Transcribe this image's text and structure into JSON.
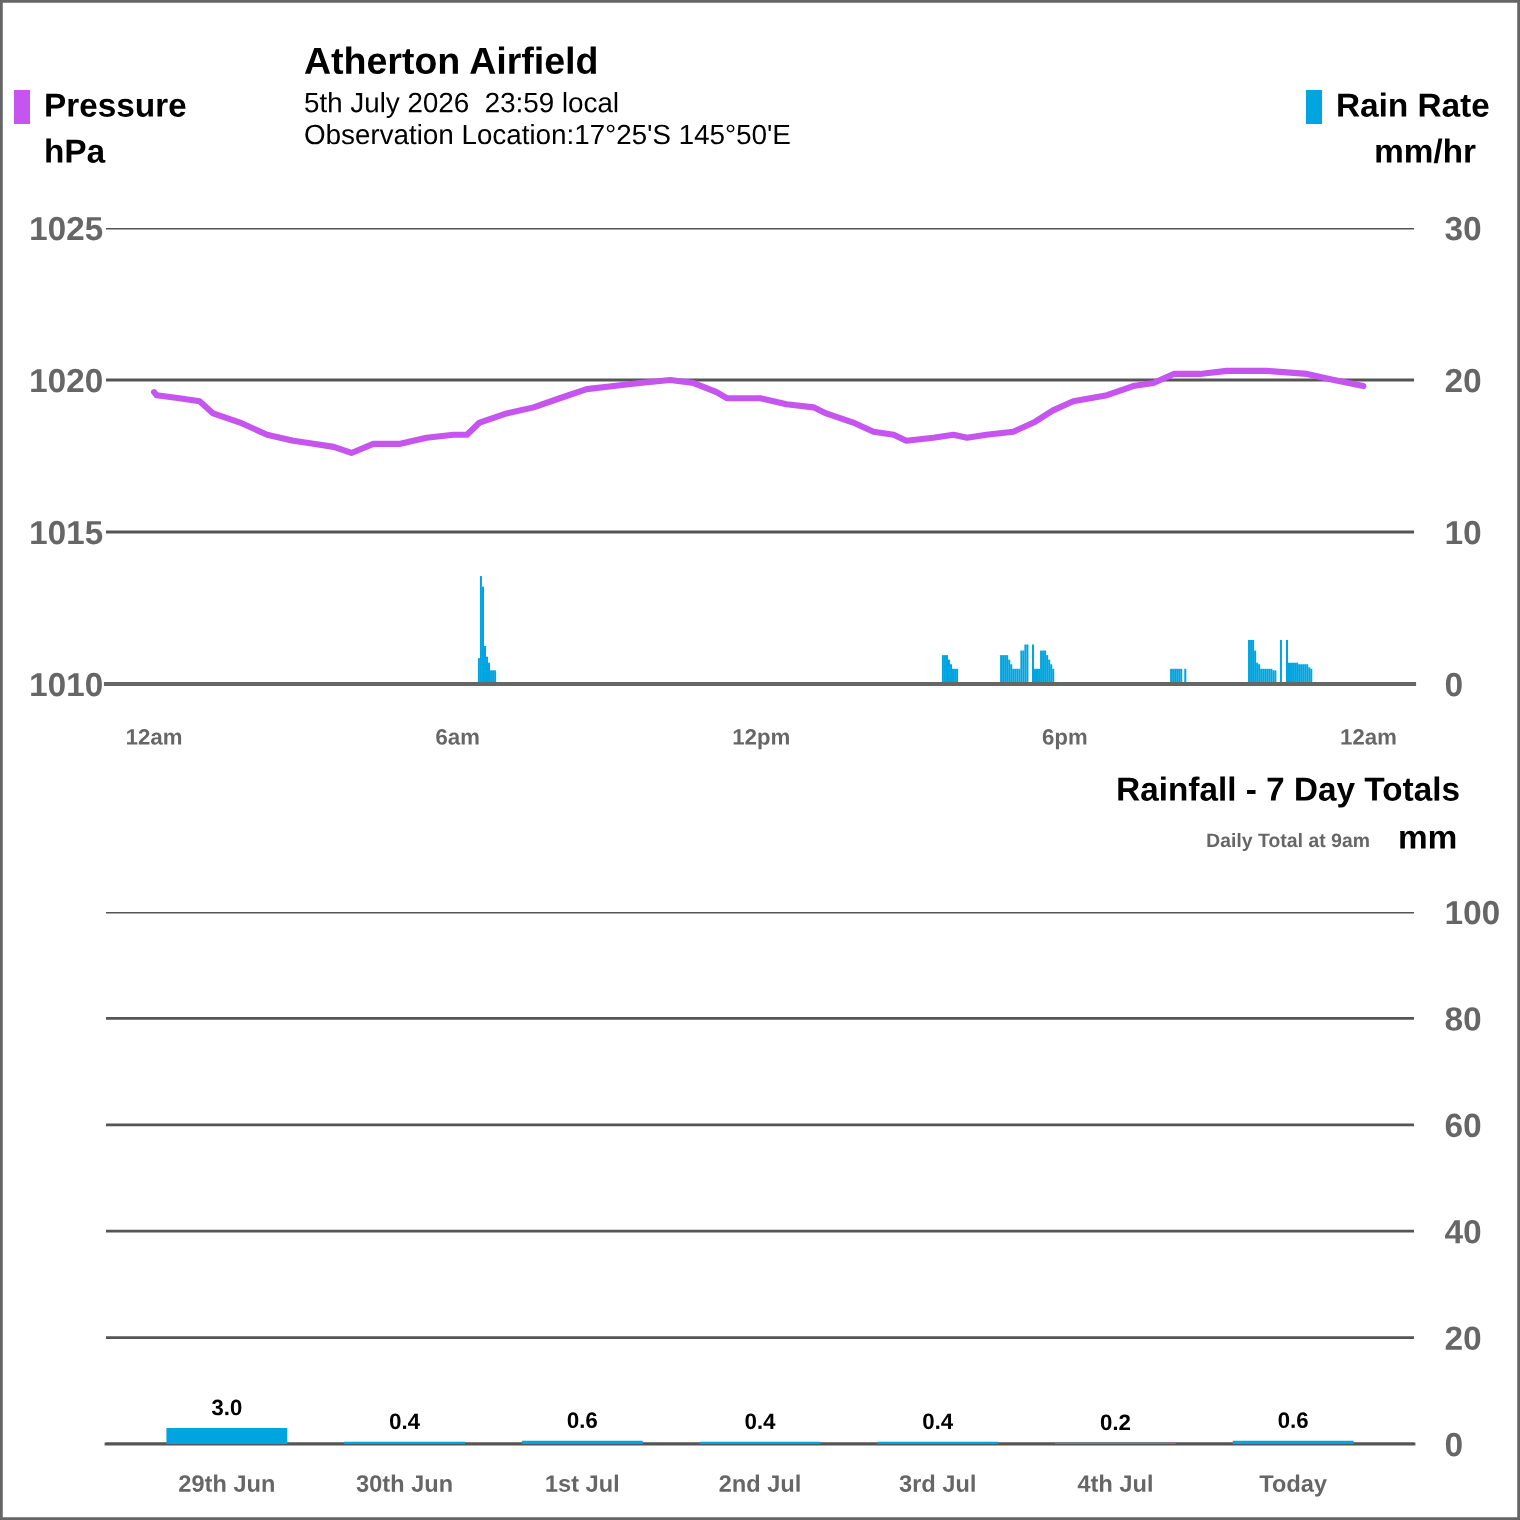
{
  "chart_data": [
    {
      "type": "line",
      "title": "Atherton Airfield",
      "subtitle": "5th July 2026  23:59 local\nObservation Location:17°25'S 145°50'E",
      "ylabel": "hPa",
      "y2label": "mm/hr",
      "legend": "top",
      "grid": "y",
      "xlim": [
        "2026-07-04T23:03",
        "2026-07-06T00:54"
      ],
      "xticks": [
        {
          "value": "2026-07-05T00:00",
          "label": "12am"
        },
        {
          "value": "2026-07-05T06:00",
          "label": "6am"
        },
        {
          "value": "2026-07-05T12:00",
          "label": "12pm"
        },
        {
          "value": "2026-07-05T18:00",
          "label": "6pm"
        },
        {
          "value": "2026-07-06T00:00",
          "label": "12am"
        }
      ],
      "ylim": [
        1010,
        1025
      ],
      "yticks": [
        1010,
        1015,
        1020,
        1025
      ],
      "y2lim": [
        0,
        30
      ],
      "y2ticks": [
        0,
        10,
        20,
        30
      ],
      "series": [
        {
          "name": "Pressure",
          "type": "line",
          "color": "#c655ef",
          "x": [
            "2026-07-05T00:00",
            "2026-07-05T00:03",
            "2026-07-05T00:30",
            "2026-07-05T00:54",
            "2026-07-05T01:10",
            "2026-07-05T01:42",
            "2026-07-05T02:14",
            "2026-07-05T02:45",
            "2026-07-05T03:09",
            "2026-07-05T03:33",
            "2026-07-05T03:54",
            "2026-07-05T04:20",
            "2026-07-05T04:52",
            "2026-07-05T05:23",
            "2026-07-05T05:55",
            "2026-07-05T06:11",
            "2026-07-05T06:26",
            "2026-07-05T06:58",
            "2026-07-05T07:30",
            "2026-07-05T08:01",
            "2026-07-05T08:33",
            "2026-07-05T09:05",
            "2026-07-05T09:36",
            "2026-07-05T10:12",
            "2026-07-05T10:40",
            "2026-07-05T11:07",
            "2026-07-05T11:19",
            "2026-07-05T11:59",
            "2026-07-05T12:30",
            "2026-07-05T13:02",
            "2026-07-05T13:17",
            "2026-07-05T13:49",
            "2026-07-05T14:13",
            "2026-07-05T14:37",
            "2026-07-05T14:52",
            "2026-07-05T15:24",
            "2026-07-05T15:48",
            "2026-07-05T16:04",
            "2026-07-05T16:27",
            "2026-07-05T16:59",
            "2026-07-05T17:23",
            "2026-07-05T17:46",
            "2026-07-05T18:10",
            "2026-07-05T18:50",
            "2026-07-05T19:21",
            "2026-07-05T19:45",
            "2026-07-05T20:09",
            "2026-07-05T20:40",
            "2026-07-05T21:12",
            "2026-07-05T21:59",
            "2026-07-05T22:47",
            "2026-07-05T23:19",
            "2026-07-05T23:54"
          ],
          "values": [
            1019.6,
            1019.5,
            1019.4,
            1019.3,
            1018.9,
            1018.6,
            1018.2,
            1018.0,
            1017.9,
            1017.8,
            1017.6,
            1017.9,
            1017.9,
            1018.1,
            1018.2,
            1018.2,
            1018.6,
            1018.9,
            1019.1,
            1019.4,
            1019.7,
            1019.8,
            1019.9,
            1020.0,
            1019.9,
            1019.6,
            1019.4,
            1019.4,
            1019.2,
            1019.1,
            1018.9,
            1018.6,
            1018.3,
            1018.2,
            1018.0,
            1018.1,
            1018.2,
            1018.1,
            1018.2,
            1018.3,
            1018.6,
            1019.0,
            1019.3,
            1019.5,
            1019.8,
            1019.9,
            1020.2,
            1020.2,
            1020.3,
            1020.3,
            1020.2,
            1020.0,
            1019.8
          ]
        },
        {
          "name": "Rain Rate",
          "type": "bar",
          "axis": "y2",
          "color": "#00a5e0",
          "x": [
            "2026-07-05T06:24:00",
            "2026-07-05T06:26:24",
            "2026-07-05T06:28:48",
            "2026-07-05T06:31:12",
            "2026-07-05T06:33:36",
            "2026-07-05T06:36:00",
            "2026-07-05T06:38:24",
            "2026-07-05T06:40:48",
            "2026-07-05T06:43:12",
            "2026-07-05T15:34:12",
            "2026-07-05T15:36:36",
            "2026-07-05T15:39:00",
            "2026-07-05T15:41:24",
            "2026-07-05T15:43:48",
            "2026-07-05T15:46:12",
            "2026-07-05T15:48:36",
            "2026-07-05T15:51:00",
            "2026-07-05T16:43:12",
            "2026-07-05T16:45:36",
            "2026-07-05T16:48:00",
            "2026-07-05T16:50:24",
            "2026-07-05T16:52:48",
            "2026-07-05T16:55:12",
            "2026-07-05T16:57:36",
            "2026-07-05T17:00:00",
            "2026-07-05T17:02:24",
            "2026-07-05T17:04:48",
            "2026-07-05T17:07:12",
            "2026-07-05T17:09:36",
            "2026-07-05T17:12:00",
            "2026-07-05T17:14:24",
            "2026-07-05T17:21:00",
            "2026-07-05T17:23:24",
            "2026-07-05T17:25:48",
            "2026-07-05T17:28:12",
            "2026-07-05T17:30:36",
            "2026-07-05T17:33:00",
            "2026-07-05T17:35:24",
            "2026-07-05T17:37:48",
            "2026-07-05T17:40:12",
            "2026-07-05T17:42:36",
            "2026-07-05T17:45:00",
            "2026-07-05T20:04:48",
            "2026-07-05T20:07:12",
            "2026-07-05T20:09:36",
            "2026-07-05T20:12:00",
            "2026-07-05T20:14:24",
            "2026-07-05T20:16:48",
            "2026-07-05T20:21:36",
            "2026-07-05T21:37:12",
            "2026-07-05T21:39:36",
            "2026-07-05T21:42:00",
            "2026-07-05T21:44:24",
            "2026-07-05T21:46:48",
            "2026-07-05T21:49:12",
            "2026-07-05T21:51:36",
            "2026-07-05T21:54:00",
            "2026-07-05T21:56:24",
            "2026-07-05T21:58:48",
            "2026-07-05T22:01:12",
            "2026-07-05T22:03:36",
            "2026-07-05T22:06:00",
            "2026-07-05T22:08:24",
            "2026-07-05T22:15:00",
            "2026-07-05T22:22:12",
            "2026-07-05T22:24:36",
            "2026-07-05T22:27:00",
            "2026-07-05T22:29:24",
            "2026-07-05T22:31:48",
            "2026-07-05T22:34:12",
            "2026-07-05T22:36:36",
            "2026-07-05T22:39:00",
            "2026-07-05T22:41:24",
            "2026-07-05T22:43:48",
            "2026-07-05T22:46:12",
            "2026-07-05T22:48:36",
            "2026-07-05T22:51:00"
          ],
          "values": [
            1.7,
            7.1,
            6.4,
            2.5,
            1.8,
            1.4,
            0.9,
            0.9,
            0.9,
            1.9,
            1.9,
            1.9,
            1.6,
            1.3,
            1.0,
            1.0,
            1.0,
            1.9,
            1.9,
            1.9,
            1.9,
            1.6,
            1.3,
            1.0,
            1.0,
            1.0,
            1.0,
            2.2,
            2.2,
            2.6,
            2.6,
            2.6,
            1.0,
            1.0,
            1.0,
            2.2,
            2.2,
            2.2,
            1.9,
            1.6,
            1.3,
            1.0,
            1.0,
            1.0,
            1.0,
            1.0,
            1.0,
            1.0,
            1.0,
            2.9,
            2.9,
            2.9,
            2.2,
            1.4,
            1.3,
            1.0,
            1.0,
            1.0,
            1.0,
            1.0,
            1.0,
            0.9,
            0.9,
            2.9,
            2.9,
            1.4,
            1.4,
            1.4,
            1.4,
            1.4,
            1.3,
            1.3,
            1.3,
            1.3,
            1.3,
            1.1,
            1.0
          ]
        }
      ]
    },
    {
      "type": "bar",
      "title": "Rainfall - 7 Day Totals",
      "subtitle": "Daily Total at 9am",
      "ylabel": "mm",
      "grid": "y",
      "categories": [
        "29th Jun",
        "30th Jun",
        "1st Jul",
        "2nd Jul",
        "3rd Jul",
        "4th Jul",
        "Today"
      ],
      "values": [
        3.0,
        0.4,
        0.6,
        0.4,
        0.4,
        0.2,
        0.6
      ],
      "value_labels": [
        "3.0",
        "0.4",
        "0.6",
        "0.4",
        "0.4",
        "0.2",
        "0.6"
      ],
      "color": "#00a5e0",
      "ylim": [
        0,
        100
      ],
      "yticks": [
        0,
        20,
        40,
        60,
        80,
        100
      ]
    }
  ]
}
